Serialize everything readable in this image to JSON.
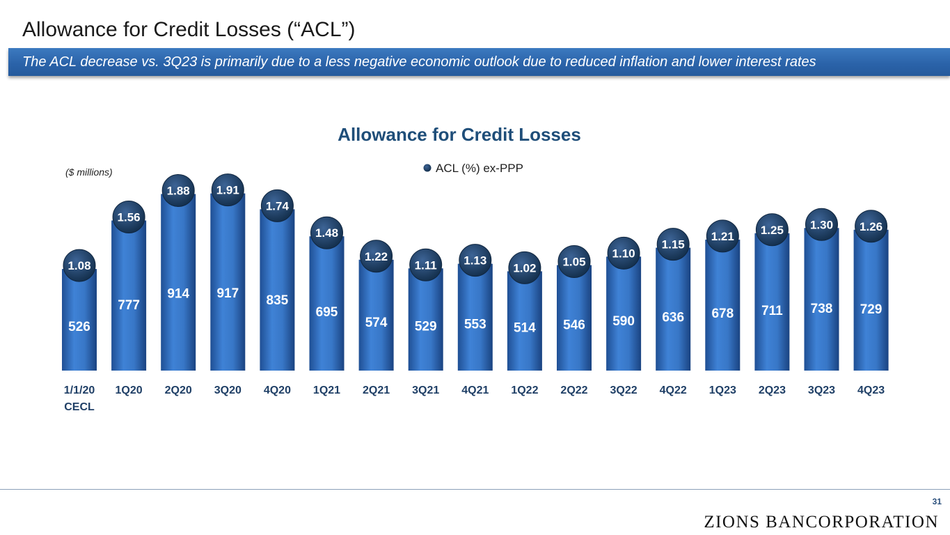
{
  "slide": {
    "title": "Allowance for Credit Losses (“ACL”)",
    "banner": "The ACL decrease vs. 3Q23 is primarily due to a less negative economic outlook due to reduced inflation and lower interest rates",
    "page_number": "31",
    "logo_text": "ZIONS BANCORPORATION"
  },
  "colors": {
    "bar": "#2f6bbd",
    "bubble": "#1f3f66",
    "title_text": "#1f4e79",
    "banner": "#2a62a8"
  },
  "chart_data": {
    "type": "bar",
    "title": "Allowance for Credit Losses",
    "units_note": "($ millions)",
    "legend": {
      "entries": [
        "ACL (%) ex-PPP"
      ],
      "placement": "top-center",
      "marker_icon": "circle-marker-icon"
    },
    "categories": [
      [
        "1/1/20",
        "CECL"
      ],
      [
        "1Q20"
      ],
      [
        "2Q20"
      ],
      [
        "3Q20"
      ],
      [
        "4Q20"
      ],
      [
        "1Q21"
      ],
      [
        "2Q21"
      ],
      [
        "3Q21"
      ],
      [
        "4Q21"
      ],
      [
        "1Q22"
      ],
      [
        "2Q22"
      ],
      [
        "3Q22"
      ],
      [
        "4Q22"
      ],
      [
        "1Q23"
      ],
      [
        "2Q23"
      ],
      [
        "3Q23"
      ],
      [
        "4Q23"
      ]
    ],
    "series": [
      {
        "values": [
          526,
          777,
          914,
          917,
          835,
          695,
          574,
          529,
          553,
          514,
          546,
          590,
          636,
          678,
          711,
          738,
          729
        ]
      },
      {
        "name": "ACL (%) ex-PPP",
        "values": [
          "1.08",
          "1.56",
          "1.88",
          "1.91",
          "1.74",
          "1.48",
          "1.22",
          "1.11",
          "1.13",
          "1.02",
          "1.05",
          "1.10",
          "1.15",
          "1.21",
          "1.25",
          "1.30",
          "1.26"
        ]
      }
    ],
    "grid": false
  }
}
